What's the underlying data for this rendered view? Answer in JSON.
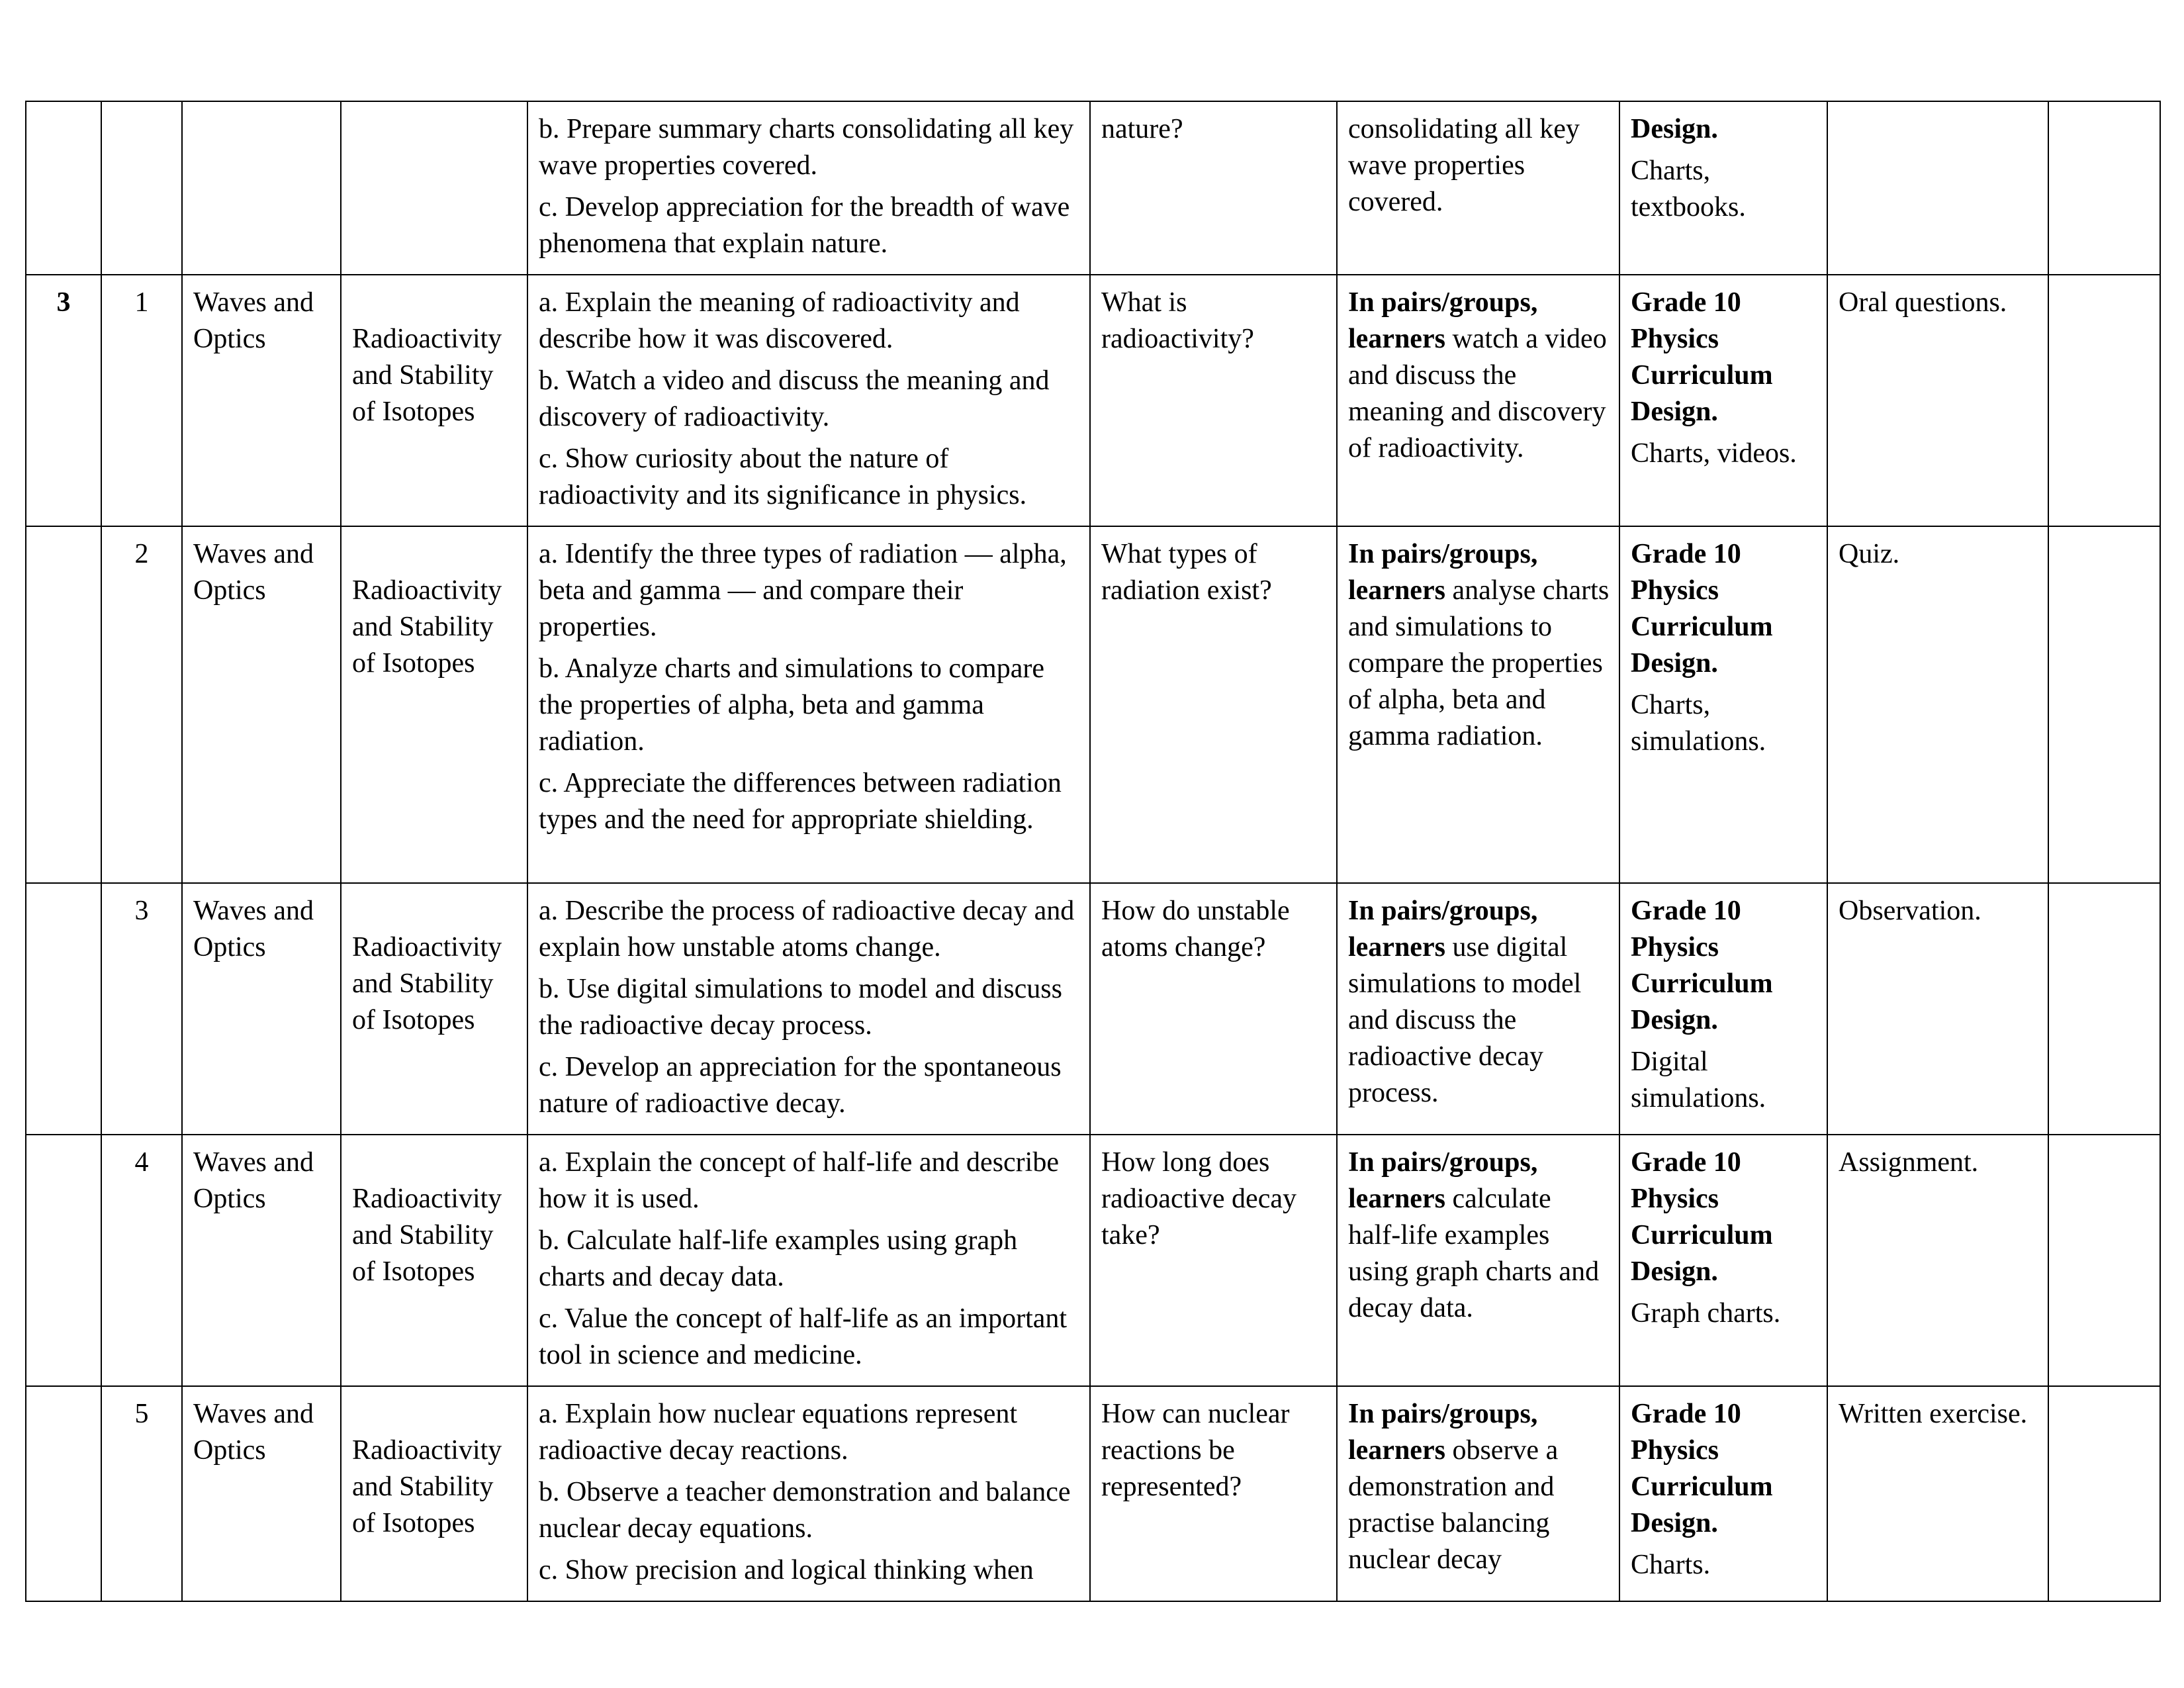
{
  "table": {
    "rows": [
      {
        "week": "",
        "lesson": "",
        "strand": "",
        "sub_strand": "",
        "outcomes": [
          "b. Prepare summary charts consolidating all key wave properties covered.",
          "c. Develop appreciation for the breadth of wave phenomena that explain nature."
        ],
        "inquiry": "nature?",
        "activity_bold": "",
        "activity_text": "consolidating all key wave properties covered.",
        "resources_bold": "Design.",
        "resources_text": "Charts, textbooks.",
        "assessment": "",
        "remarks": ""
      },
      {
        "week": "3",
        "lesson": "1",
        "strand": "Waves and Optics",
        "sub_strand": "Radioactivity and Stability of Isotopes",
        "outcomes": [
          "a. Explain the meaning of radioactivity and describe how it was discovered.",
          "b. Watch a video and discuss the meaning and discovery of radioactivity.",
          "c. Show curiosity about the nature of radioactivity and its significance in physics."
        ],
        "inquiry": "What is radioactivity?",
        "activity_bold": "In pairs/groups, learners",
        "activity_text": " watch a video and discuss the meaning and discovery of radioactivity.",
        "resources_bold": "Grade 10 Physics Curriculum Design.",
        "resources_text": "Charts, videos.",
        "assessment": "Oral questions.",
        "remarks": ""
      },
      {
        "week": "",
        "lesson": "2",
        "strand": "Waves and Optics",
        "sub_strand": "Radioactivity and Stability of Isotopes",
        "outcomes": [
          "a. Identify the three types of radiation — alpha, beta and gamma — and compare their properties.",
          "b. Analyze charts and simulations to compare the properties of alpha, beta and gamma radiation.",
          "c. Appreciate the differences between radiation types and the need for appropriate shielding."
        ],
        "inquiry": "What types of radiation exist?",
        "activity_bold": "In pairs/groups, learners",
        "activity_text": " analyse charts and simulations to compare the properties of alpha, beta and gamma radiation.",
        "resources_bold": "Grade 10 Physics Curriculum Design.",
        "resources_text": "Charts, simulations.",
        "assessment": "Quiz.",
        "remarks": ""
      },
      {
        "week": "",
        "lesson": "3",
        "strand": "Waves and Optics",
        "sub_strand": "Radioactivity and Stability of Isotopes",
        "outcomes": [
          "a. Describe the process of radioactive decay and explain how unstable atoms change.",
          "b. Use digital simulations to model and discuss the radioactive decay process.",
          "c. Develop an appreciation for the spontaneous nature of radioactive decay."
        ],
        "inquiry": "How do unstable atoms change?",
        "activity_bold": "In pairs/groups, learners",
        "activity_text": " use digital simulations to model and discuss the radioactive decay process.",
        "resources_bold": "Grade 10 Physics Curriculum Design.",
        "resources_text": "Digital simulations.",
        "assessment": "Observation.",
        "remarks": ""
      },
      {
        "week": "",
        "lesson": "4",
        "strand": "Waves and Optics",
        "sub_strand": "Radioactivity and Stability of Isotopes",
        "outcomes": [
          "a. Explain the concept of half-life and describe how it is used.",
          "b. Calculate half-life examples using graph charts and decay data.",
          "c. Value the concept of half-life as an important tool in science and medicine."
        ],
        "inquiry": "How long does radioactive decay take?",
        "activity_bold": "In pairs/groups, learners",
        "activity_text": " calculate half-life examples using graph charts and decay data.",
        "resources_bold": "Grade 10 Physics Curriculum Design.",
        "resources_text": "Graph charts.",
        "assessment": "Assignment.",
        "remarks": ""
      },
      {
        "week": "",
        "lesson": "5",
        "strand": "Waves and Optics",
        "sub_strand": "Radioactivity and Stability of Isotopes",
        "outcomes": [
          "a. Explain how nuclear equations represent radioactive decay reactions.",
          "b. Observe a teacher demonstration and balance nuclear decay equations.",
          "c. Show precision and logical thinking when"
        ],
        "inquiry": "How can nuclear reactions be represented?",
        "activity_bold": "In pairs/groups, learners",
        "activity_text": " observe a demonstration and practise balancing nuclear decay",
        "resources_bold": "Grade 10 Physics Curriculum Design.",
        "resources_text": "Charts.",
        "assessment": "Written exercise.",
        "remarks": ""
      }
    ]
  }
}
